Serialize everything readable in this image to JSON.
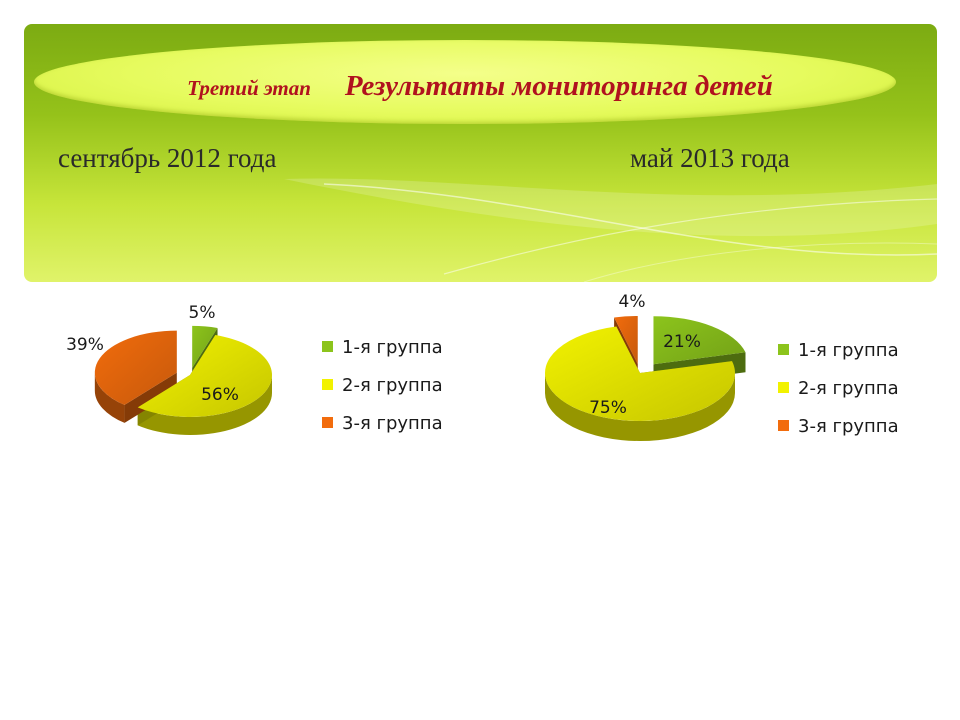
{
  "header": {
    "stage_label": "Третий этап",
    "title": "Результаты мониторинга  детей",
    "period_left": "сентябрь 2012 года",
    "period_right": "май  2013 года"
  },
  "colors": {
    "group1": "#8cc41c",
    "group2": "#f2f200",
    "group3": "#f26c0d",
    "title_text": "#b0121e"
  },
  "chart_data": [
    {
      "type": "pie",
      "style": "3d-exploded",
      "categories": [
        "1-я группа",
        "2-я группа",
        "3-я группа"
      ],
      "values": [
        5,
        56,
        39
      ],
      "data_labels": [
        "5%",
        "56%",
        "39%"
      ],
      "legend": "right"
    },
    {
      "type": "pie",
      "style": "3d-exploded",
      "categories": [
        "1-я группа",
        "2-я группа",
        "3-я группа"
      ],
      "values": [
        21,
        75,
        4
      ],
      "data_labels": [
        "21%",
        "75%",
        "4%"
      ],
      "legend": "right"
    }
  ]
}
